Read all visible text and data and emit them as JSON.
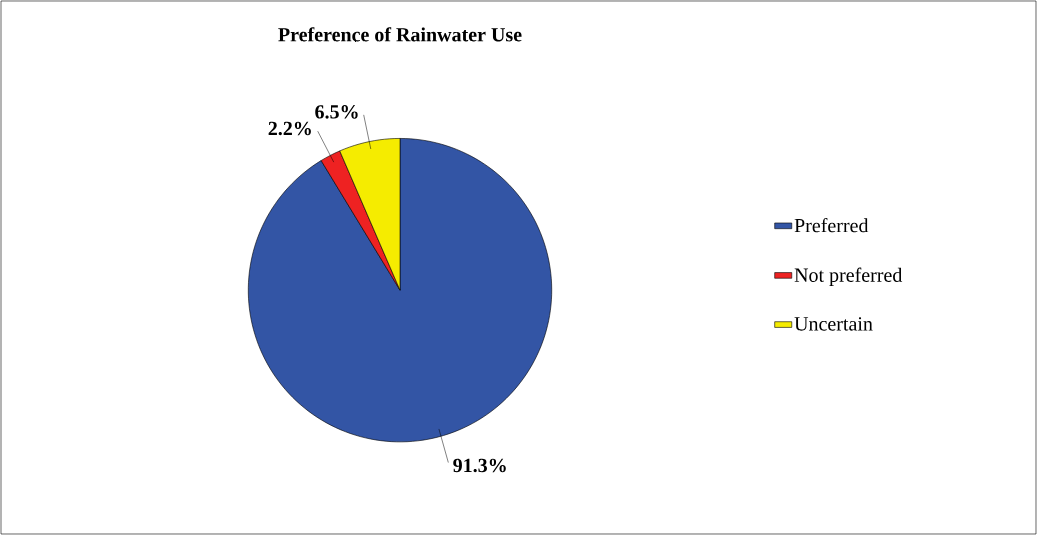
{
  "chart_data": {
    "type": "pie",
    "title": "Preference of Rainwater Use",
    "categories": [
      "Preferred",
      "Not preferred",
      "Uncertain"
    ],
    "values": [
      91.3,
      2.2,
      6.5
    ],
    "value_labels": [
      "91.3%",
      "2.2%",
      "6.5%"
    ],
    "colors": [
      "#3355a5",
      "#ee2222",
      "#f5ec00"
    ],
    "legend": "right"
  }
}
